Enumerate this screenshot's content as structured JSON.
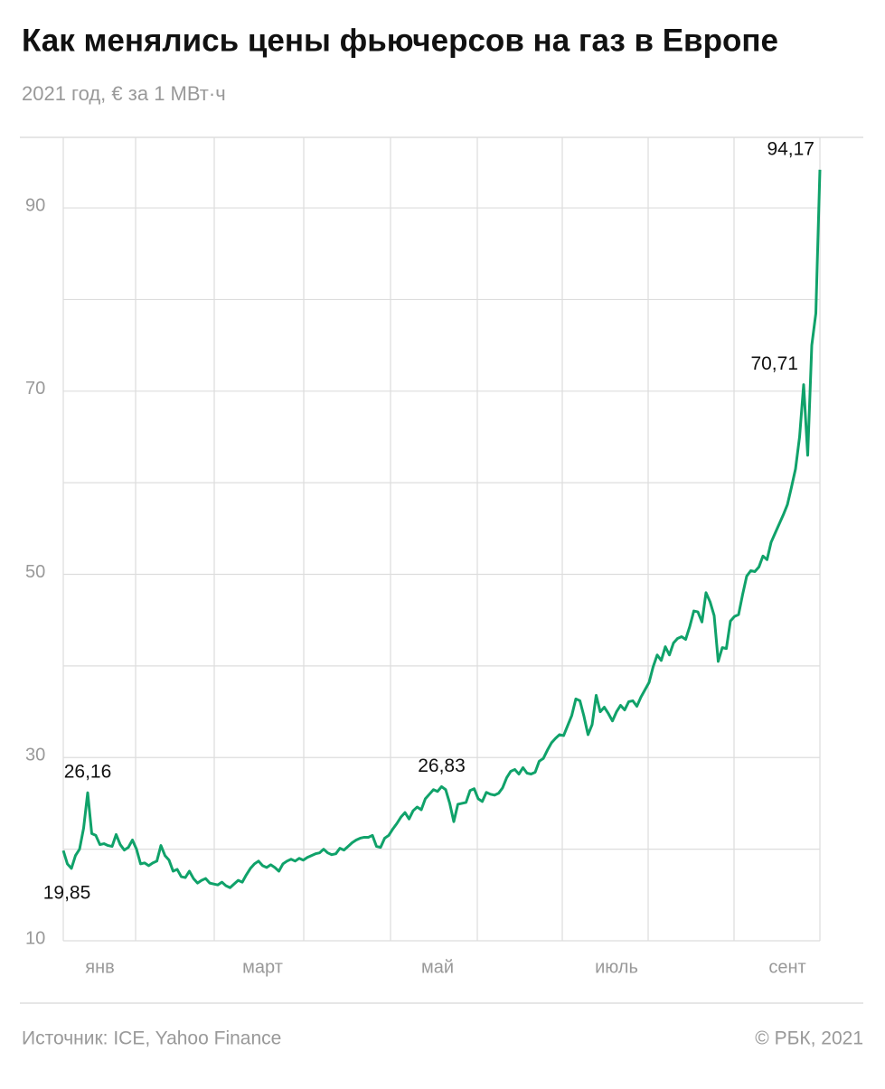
{
  "chart_data": {
    "type": "line",
    "title": "Как менялись цены фьючерсов на газ в Европе",
    "subtitle": "2021 год, € за 1 МВт·ч",
    "source": "Источник: ICE, Yahoo Finance",
    "credit": "© РБК, 2021",
    "categories": [
      null,
      null,
      null,
      null,
      null,
      null,
      null,
      null,
      null,
      "янв",
      null,
      null,
      null,
      null,
      null,
      null,
      null,
      null,
      null,
      null,
      null,
      null,
      null,
      null,
      null,
      null,
      null,
      null,
      null,
      null,
      null,
      null,
      null,
      null,
      null,
      null,
      null,
      null,
      null,
      null,
      null,
      null,
      null,
      null,
      null,
      null,
      null,
      null,
      null,
      "март",
      null,
      null,
      null,
      null,
      null,
      null,
      null,
      null,
      null,
      null,
      null,
      null,
      null,
      null,
      null,
      null,
      null,
      null,
      null,
      null,
      null,
      null,
      null,
      null,
      null,
      null,
      null,
      null,
      null,
      null,
      null,
      null,
      null,
      null,
      null,
      null,
      null,
      null,
      null,
      null,
      null,
      null,
      "май",
      null,
      null,
      null,
      null,
      null,
      null,
      null,
      null,
      null,
      null,
      null,
      null,
      null,
      null,
      null,
      null,
      null,
      null,
      null,
      null,
      null,
      null,
      null,
      null,
      null,
      null,
      null,
      null,
      null,
      null,
      null,
      null,
      null,
      null,
      null,
      null,
      null,
      null,
      null,
      null,
      null,
      null,
      null,
      "июль",
      null,
      null,
      null,
      null,
      null,
      null,
      null,
      null,
      null,
      null,
      null,
      null,
      null,
      null,
      null,
      null,
      null,
      null,
      null,
      null,
      null,
      null,
      null,
      null,
      null,
      null,
      null,
      null,
      null,
      null,
      null,
      null,
      null,
      null,
      null,
      null,
      null,
      null,
      null,
      null,
      null,
      "сент",
      null,
      null,
      null,
      null,
      null,
      null,
      null,
      null
    ],
    "series": [
      {
        "color": "#10a26a",
        "values": [
          19.85,
          18.4,
          17.9,
          19.3,
          20.0,
          22.3,
          26.16,
          21.7,
          21.5,
          20.5,
          20.6,
          20.4,
          20.3,
          21.6,
          20.5,
          19.9,
          20.2,
          21.0,
          20.0,
          18.4,
          18.5,
          18.2,
          18.5,
          18.7,
          20.4,
          19.3,
          18.8,
          17.6,
          17.8,
          17.0,
          16.9,
          17.6,
          16.8,
          16.3,
          16.6,
          16.8,
          16.3,
          16.2,
          16.1,
          16.4,
          16.0,
          15.8,
          16.2,
          16.6,
          16.4,
          17.2,
          17.9,
          18.4,
          18.7,
          18.2,
          18.0,
          18.3,
          18.0,
          17.6,
          18.4,
          18.7,
          18.9,
          18.7,
          19.0,
          18.8,
          19.1,
          19.3,
          19.5,
          19.6,
          20.0,
          19.6,
          19.4,
          19.5,
          20.1,
          19.9,
          20.3,
          20.7,
          21.0,
          21.2,
          21.3,
          21.3,
          21.5,
          20.3,
          20.2,
          21.2,
          21.5,
          22.2,
          22.8,
          23.5,
          24.0,
          23.3,
          24.2,
          24.6,
          24.3,
          25.5,
          26.0,
          26.5,
          26.3,
          26.83,
          26.5,
          25.0,
          23.0,
          24.9,
          25.0,
          25.1,
          26.4,
          26.6,
          25.5,
          25.2,
          26.2,
          26.0,
          25.9,
          26.1,
          26.7,
          27.8,
          28.5,
          28.7,
          28.2,
          28.9,
          28.3,
          28.2,
          28.4,
          29.6,
          29.9,
          30.8,
          31.6,
          32.1,
          32.5,
          32.4,
          33.5,
          34.6,
          36.4,
          36.2,
          34.5,
          32.5,
          33.6,
          36.8,
          35.0,
          35.5,
          34.8,
          34.0,
          35.0,
          35.7,
          35.2,
          36.1,
          36.2,
          35.6,
          36.6,
          37.4,
          38.2,
          39.9,
          41.2,
          40.6,
          42.1,
          41.2,
          42.5,
          43.0,
          43.2,
          42.9,
          44.3,
          46.0,
          45.9,
          44.8,
          48.0,
          47.0,
          45.5,
          40.5,
          42.0,
          41.9,
          44.9,
          45.4,
          45.6,
          47.8,
          49.8,
          50.4,
          50.3,
          50.8,
          52.0,
          51.6,
          53.5,
          54.5,
          55.5,
          56.5,
          57.6,
          59.5,
          61.5,
          65.0,
          70.71,
          63.0,
          75.0,
          78.5,
          94.17
        ],
        "value_labels": [
          "19,85",
          null,
          null,
          null,
          null,
          null,
          "26,16",
          null,
          null,
          null,
          null,
          null,
          null,
          null,
          null,
          null,
          null,
          null,
          null,
          null,
          null,
          null,
          null,
          null,
          null,
          null,
          null,
          null,
          null,
          null,
          null,
          null,
          null,
          null,
          null,
          null,
          null,
          null,
          null,
          null,
          null,
          null,
          null,
          null,
          null,
          null,
          null,
          null,
          null,
          null,
          null,
          null,
          null,
          null,
          null,
          null,
          null,
          null,
          null,
          null,
          null,
          null,
          null,
          null,
          null,
          null,
          null,
          null,
          null,
          null,
          null,
          null,
          null,
          null,
          null,
          null,
          null,
          null,
          null,
          null,
          null,
          null,
          null,
          null,
          null,
          null,
          null,
          null,
          null,
          null,
          null,
          null,
          null,
          "26,83",
          null,
          null,
          null,
          null,
          null,
          null,
          null,
          null,
          null,
          null,
          null,
          null,
          null,
          null,
          null,
          null,
          null,
          null,
          null,
          null,
          null,
          null,
          null,
          null,
          null,
          null,
          null,
          null,
          null,
          null,
          null,
          null,
          null,
          null,
          null,
          null,
          null,
          null,
          null,
          null,
          null,
          null,
          null,
          null,
          null,
          null,
          null,
          null,
          null,
          null,
          null,
          null,
          null,
          null,
          null,
          null,
          null,
          null,
          null,
          null,
          null,
          null,
          null,
          null,
          null,
          null,
          null,
          null,
          null,
          null,
          null,
          null,
          null,
          null,
          null,
          null,
          null,
          null,
          null,
          null,
          null,
          null,
          null,
          null,
          null,
          null,
          null,
          null,
          "70,71",
          null,
          null,
          null,
          "94,17"
        ]
      }
    ],
    "ylim": [
      10,
      97.7
    ],
    "yticks": [
      10,
      30,
      50,
      70,
      90
    ],
    "minor_yticks": [
      20,
      40,
      60,
      80
    ],
    "grid": true
  }
}
